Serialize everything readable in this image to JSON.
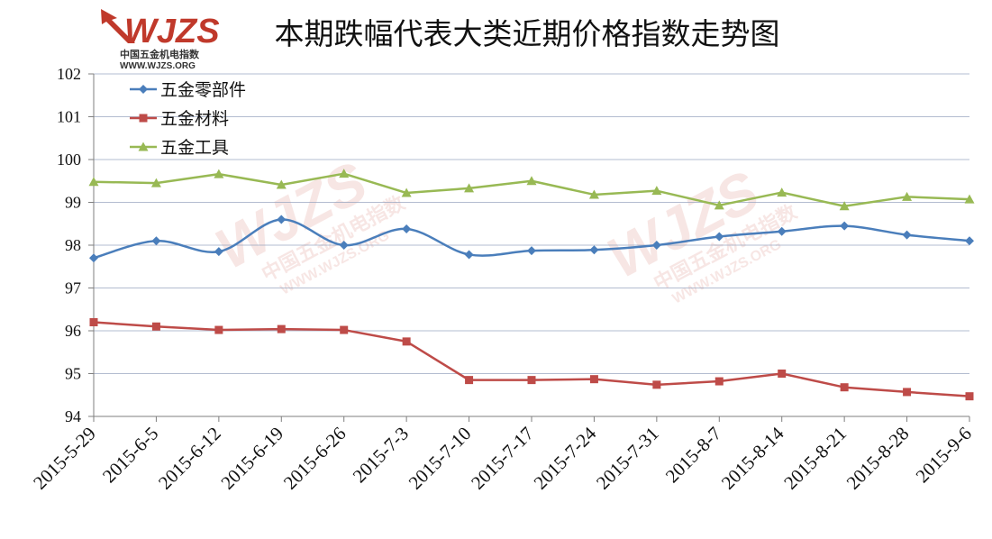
{
  "logo": {
    "brand": "WJZS",
    "name_cn": "中国五金机电指数",
    "url": "WWW.WJZS.ORG",
    "color": "#c0392b"
  },
  "chart_data": {
    "type": "line",
    "title": "本期跌幅代表大类近期价格指数走势图",
    "xlabel": "",
    "ylabel": "",
    "categories": [
      "2015-5-29",
      "2015-6-5",
      "2015-6-12",
      "2015-6-19",
      "2015-6-26",
      "2015-7-3",
      "2015-7-10",
      "2015-7-17",
      "2015-7-24",
      "2015-7-31",
      "2015-8-7",
      "2015-8-14",
      "2015-8-21",
      "2015-8-28",
      "2015-9-6"
    ],
    "ylim": [
      94,
      102
    ],
    "yticks": [
      "94",
      "95",
      "96",
      "97",
      "98",
      "99",
      "100",
      "101",
      "102"
    ],
    "grid": "horizontal",
    "legend_position": "top-left",
    "series": [
      {
        "name": "五金零部件",
        "color": "#4a7ebb",
        "marker": "diamond",
        "smooth": true,
        "values": [
          97.7,
          98.1,
          97.85,
          98.6,
          98.0,
          98.38,
          97.78,
          97.87,
          97.89,
          98.0,
          98.2,
          98.32,
          98.45,
          98.24,
          98.1
        ]
      },
      {
        "name": "五金材料",
        "color": "#be4b48",
        "marker": "square",
        "smooth": false,
        "values": [
          96.2,
          96.1,
          96.02,
          96.04,
          96.02,
          95.75,
          94.85,
          94.85,
          94.87,
          94.74,
          94.82,
          95.0,
          94.68,
          94.57,
          94.47
        ]
      },
      {
        "name": "五金工具",
        "color": "#98b954",
        "marker": "triangle",
        "smooth": false,
        "values": [
          99.48,
          99.45,
          99.66,
          99.41,
          99.67,
          99.22,
          99.33,
          99.5,
          99.18,
          99.27,
          98.93,
          99.23,
          98.91,
          99.13,
          99.07
        ]
      }
    ]
  }
}
